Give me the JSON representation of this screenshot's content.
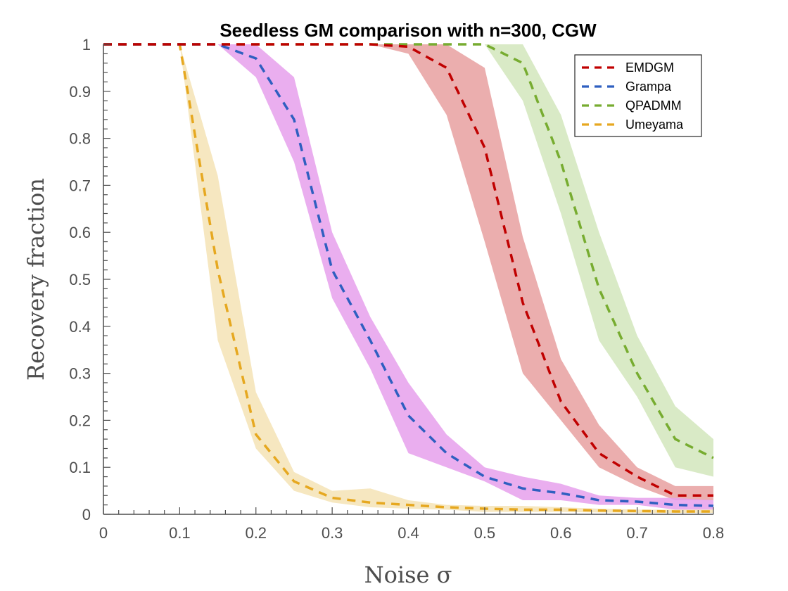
{
  "chart_data": {
    "type": "line",
    "title": "Seedless GM comparison with n=300, CGW",
    "xlabel": "Noise σ",
    "ylabel": "Recovery fraction",
    "xlim": [
      0,
      0.8
    ],
    "ylim": [
      0,
      1
    ],
    "xticks": [
      "0",
      "0.1",
      "0.2",
      "0.3",
      "0.4",
      "0.5",
      "0.6",
      "0.7",
      "0.8"
    ],
    "yticks": [
      "0",
      "0.1",
      "0.2",
      "0.3",
      "0.4",
      "0.5",
      "0.6",
      "0.7",
      "0.8",
      "0.9",
      "1"
    ],
    "grid": false,
    "legend_position": "top-right",
    "x": [
      0,
      0.05,
      0.1,
      0.15,
      0.2,
      0.25,
      0.3,
      0.35,
      0.4,
      0.45,
      0.5,
      0.55,
      0.6,
      0.65,
      0.7,
      0.75,
      0.8
    ],
    "series": [
      {
        "name": "EMDGM",
        "color": "#c00000",
        "band_color": "#e8a0a0",
        "values": [
          1,
          1,
          1,
          1,
          1,
          1,
          1,
          1,
          0.995,
          0.95,
          0.78,
          0.45,
          0.24,
          0.13,
          0.08,
          0.04,
          0.04
        ],
        "lower": [
          1,
          1,
          1,
          1,
          1,
          1,
          1,
          1,
          0.98,
          0.85,
          0.58,
          0.3,
          0.2,
          0.1,
          0.06,
          0.03,
          0.03
        ],
        "upper": [
          1,
          1,
          1,
          1,
          1,
          1,
          1,
          1,
          1,
          1,
          0.95,
          0.59,
          0.33,
          0.19,
          0.1,
          0.06,
          0.06
        ]
      },
      {
        "name": "Grampa",
        "color": "#2f5fc0",
        "band_color": "#e6a0ec",
        "values": [
          1,
          1,
          1,
          1,
          0.97,
          0.84,
          0.52,
          0.37,
          0.21,
          0.13,
          0.08,
          0.055,
          0.045,
          0.03,
          0.027,
          0.02,
          0.018
        ],
        "lower": [
          1,
          1,
          1,
          1,
          0.93,
          0.75,
          0.46,
          0.31,
          0.13,
          0.1,
          0.07,
          0.03,
          0.03,
          0.02,
          0.02,
          0.01,
          0.01
        ],
        "upper": [
          1,
          1,
          1,
          1,
          1,
          0.93,
          0.6,
          0.42,
          0.28,
          0.17,
          0.1,
          0.08,
          0.065,
          0.04,
          0.035,
          0.035,
          0.03
        ]
      },
      {
        "name": "QPADMM",
        "color": "#77ac30",
        "band_color": "#d2e6bc",
        "values": [
          1,
          1,
          1,
          1,
          1,
          1,
          1,
          1,
          1,
          1,
          1,
          0.96,
          0.75,
          0.48,
          0.3,
          0.16,
          0.12
        ],
        "lower": [
          1,
          1,
          1,
          1,
          1,
          1,
          1,
          1,
          1,
          1,
          1,
          0.88,
          0.64,
          0.37,
          0.25,
          0.1,
          0.08
        ],
        "upper": [
          1,
          1,
          1,
          1,
          1,
          1,
          1,
          1,
          1,
          1,
          1,
          1,
          0.85,
          0.6,
          0.38,
          0.23,
          0.16
        ]
      },
      {
        "name": "Umeyama",
        "color": "#e6a820",
        "band_color": "#f5e3b5",
        "values": [
          1,
          1,
          1,
          0.52,
          0.17,
          0.07,
          0.035,
          0.025,
          0.02,
          0.015,
          0.012,
          0.01,
          0.01,
          0.008,
          0.007,
          0.006,
          0.006
        ],
        "lower": [
          1,
          1,
          1,
          0.37,
          0.14,
          0.05,
          0.025,
          0.015,
          0.012,
          0.01,
          0.005,
          0.005,
          0.005,
          0.004,
          0.003,
          0.003,
          0.003
        ],
        "upper": [
          1,
          1,
          1,
          0.72,
          0.26,
          0.09,
          0.05,
          0.055,
          0.03,
          0.02,
          0.018,
          0.018,
          0.015,
          0.012,
          0.01,
          0.01,
          0.01
        ]
      }
    ]
  }
}
